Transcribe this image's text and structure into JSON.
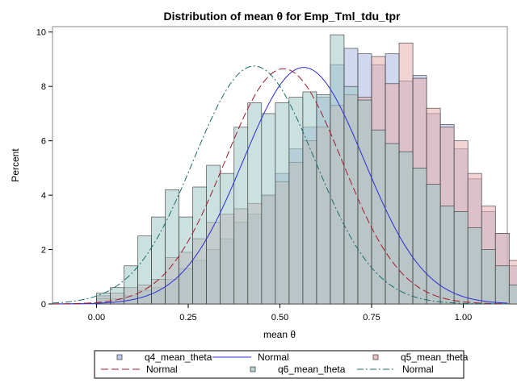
{
  "chart_data": {
    "type": "histogram",
    "title": "Distribution of mean θ for Emp_Tml_tdu_tpr",
    "xlabel": "mean θ",
    "ylabel": "Percent",
    "xlim": [
      -0.12,
      1.12
    ],
    "ylim": [
      0,
      10.2
    ],
    "xticks": [
      "0.00",
      "0.25",
      "0.50",
      "0.75",
      "1.00"
    ],
    "yticks": [
      "0",
      "2",
      "4",
      "6",
      "8",
      "10"
    ],
    "bin_width": 0.0375,
    "grid": false,
    "legend_position": "bottom",
    "series": [
      {
        "name": "q4_mean_theta",
        "kind": "histogram",
        "color": "#A7B8E0",
        "bin_start": 0.0,
        "values": [
          0.2,
          0.2,
          0.3,
          0.5,
          0.6,
          0.9,
          1.3,
          1.6,
          2.0,
          2.4,
          3.0,
          3.3,
          4.0,
          4.8,
          5.7,
          6.5,
          7.6,
          8.8,
          9.4,
          9.2,
          8.8,
          9.2,
          8.2,
          8.4,
          7.0,
          6.6,
          5.7,
          4.6,
          3.4,
          2.6,
          1.4,
          0.8,
          0.3,
          0.2,
          0.1,
          0.0
        ]
      },
      {
        "name": "Normal",
        "kind": "curve",
        "color": "#2B2BD6",
        "dash": "solid",
        "mean": 0.565,
        "sd": 0.165,
        "peak": 8.7
      },
      {
        "name": "q5_mean_theta",
        "kind": "histogram",
        "color": "#E7AFAF",
        "bin_start": 0.0,
        "values": [
          0.3,
          0.4,
          0.6,
          0.7,
          0.9,
          1.7,
          1.9,
          2.4,
          3.0,
          3.3,
          3.5,
          3.7,
          4.0,
          4.5,
          5.2,
          6.0,
          6.5,
          7.3,
          7.7,
          7.6,
          9.1,
          8.1,
          9.6,
          8.3,
          7.2,
          6.5,
          6.0,
          4.8,
          3.6,
          2.6,
          1.6,
          0.8,
          0.4,
          0.3,
          0.1,
          0.0
        ]
      },
      {
        "name": "Normal",
        "kind": "curve",
        "color": "#A01C2F",
        "dash": "longdash",
        "mean": 0.51,
        "sd": 0.16,
        "peak": 8.65
      },
      {
        "name": "q6_mean_theta",
        "kind": "histogram",
        "color": "#9FC9C6",
        "bin_start": 0.0,
        "values": [
          0.4,
          0.6,
          1.4,
          2.5,
          3.2,
          4.2,
          3.2,
          4.3,
          5.1,
          4.8,
          6.5,
          7.4,
          7.0,
          7.4,
          7.6,
          7.8,
          7.7,
          9.9,
          8.0,
          7.5,
          6.4,
          5.9,
          5.6,
          5.0,
          4.4,
          3.6,
          3.4,
          2.8,
          2.0,
          1.4,
          0.7,
          0.4,
          0.3,
          0.2,
          0.0,
          0.0
        ]
      },
      {
        "name": "Normal",
        "kind": "curve",
        "color": "#1B6B6B",
        "dash": "dashdot",
        "mean": 0.43,
        "sd": 0.165,
        "peak": 8.75
      }
    ]
  }
}
